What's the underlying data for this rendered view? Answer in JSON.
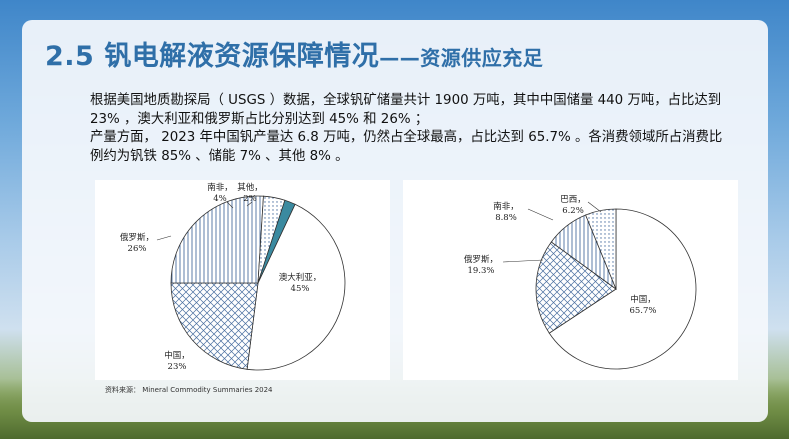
{
  "slide": {
    "title_main": "2.5  钒电解液资源保障情况",
    "title_sub": "——资源供应充足",
    "paragraph1": "根据美国地质勘探局（ USGS ）数据，全球钒矿储量共计 1900  万吨，其中中国储量 440  万吨，占比达到 23% ，澳大利亚和俄罗斯占比分别达到 45% 和  26% ；",
    "paragraph2": "产量方面， 2023 年中国钒产量达 6.8 万吨，仍然占全球最高，占比达到  65.7% 。各消费领域所占消费比例约为钒铁  85% 、储能  7% 、其他  8% 。",
    "source": "资料来源：  Mineral Commodity Summaries 2024"
  },
  "chart_data": [
    {
      "type": "pie",
      "slices": [
        {
          "label": "澳大利亚，",
          "value": 45,
          "value_label": "45%"
        },
        {
          "label": "中国，",
          "value": 23,
          "value_label": "23%"
        },
        {
          "label": "俄罗斯，",
          "value": 26,
          "value_label": "26%"
        },
        {
          "label": "南非，",
          "value": 4,
          "value_label": "4%"
        },
        {
          "label": "其他，",
          "value": 2,
          "value_label": "2%"
        }
      ]
    },
    {
      "type": "pie",
      "slices": [
        {
          "label": "中国，",
          "value": 65.7,
          "value_label": "65.7%"
        },
        {
          "label": "俄罗斯，",
          "value": 19.3,
          "value_label": "19.3%"
        },
        {
          "label": "南非，",
          "value": 8.8,
          "value_label": "8.8%"
        },
        {
          "label": "巴西，",
          "value": 6.2,
          "value_label": "6.2%"
        }
      ]
    }
  ]
}
